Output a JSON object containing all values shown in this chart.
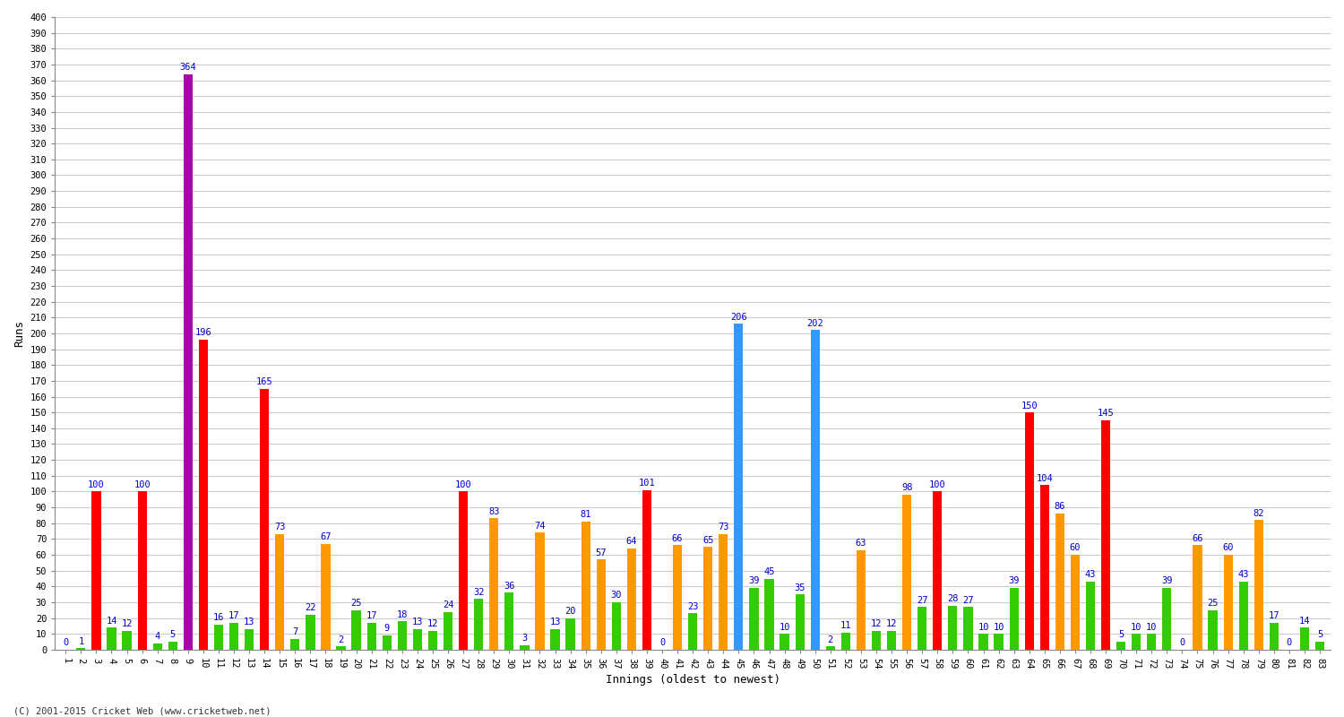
{
  "title": "",
  "xlabel": "Innings (oldest to newest)",
  "ylabel": "Runs",
  "background_color": "#ffffff",
  "grid_color": "#cccccc",
  "innings": [
    {
      "x": 1,
      "score": 0,
      "color": "#33cc00"
    },
    {
      "x": 2,
      "score": 1,
      "color": "#33cc00"
    },
    {
      "x": 3,
      "score": 100,
      "color": "#ff0000"
    },
    {
      "x": 4,
      "score": 14,
      "color": "#33cc00"
    },
    {
      "x": 5,
      "score": 12,
      "color": "#33cc00"
    },
    {
      "x": 6,
      "score": 100,
      "color": "#ff0000"
    },
    {
      "x": 7,
      "score": 4,
      "color": "#33cc00"
    },
    {
      "x": 8,
      "score": 5,
      "color": "#33cc00"
    },
    {
      "x": 9,
      "score": 364,
      "color": "#aa00aa"
    },
    {
      "x": 10,
      "score": 196,
      "color": "#ff0000"
    },
    {
      "x": 11,
      "score": 16,
      "color": "#33cc00"
    },
    {
      "x": 12,
      "score": 17,
      "color": "#33cc00"
    },
    {
      "x": 13,
      "score": 13,
      "color": "#33cc00"
    },
    {
      "x": 14,
      "score": 165,
      "color": "#ff0000"
    },
    {
      "x": 15,
      "score": 73,
      "color": "#ff9900"
    },
    {
      "x": 16,
      "score": 7,
      "color": "#33cc00"
    },
    {
      "x": 17,
      "score": 22,
      "color": "#33cc00"
    },
    {
      "x": 18,
      "score": 67,
      "color": "#ff9900"
    },
    {
      "x": 19,
      "score": 2,
      "color": "#33cc00"
    },
    {
      "x": 20,
      "score": 25,
      "color": "#33cc00"
    },
    {
      "x": 21,
      "score": 17,
      "color": "#33cc00"
    },
    {
      "x": 22,
      "score": 9,
      "color": "#33cc00"
    },
    {
      "x": 23,
      "score": 18,
      "color": "#33cc00"
    },
    {
      "x": 24,
      "score": 13,
      "color": "#33cc00"
    },
    {
      "x": 25,
      "score": 12,
      "color": "#33cc00"
    },
    {
      "x": 26,
      "score": 24,
      "color": "#33cc00"
    },
    {
      "x": 27,
      "score": 100,
      "color": "#ff0000"
    },
    {
      "x": 28,
      "score": 32,
      "color": "#33cc00"
    },
    {
      "x": 29,
      "score": 83,
      "color": "#ff9900"
    },
    {
      "x": 30,
      "score": 36,
      "color": "#33cc00"
    },
    {
      "x": 31,
      "score": 3,
      "color": "#33cc00"
    },
    {
      "x": 32,
      "score": 74,
      "color": "#ff9900"
    },
    {
      "x": 33,
      "score": 13,
      "color": "#33cc00"
    },
    {
      "x": 34,
      "score": 20,
      "color": "#33cc00"
    },
    {
      "x": 35,
      "score": 81,
      "color": "#ff9900"
    },
    {
      "x": 36,
      "score": 57,
      "color": "#ff9900"
    },
    {
      "x": 37,
      "score": 30,
      "color": "#33cc00"
    },
    {
      "x": 38,
      "score": 64,
      "color": "#ff9900"
    },
    {
      "x": 39,
      "score": 101,
      "color": "#ff0000"
    },
    {
      "x": 40,
      "score": 0,
      "color": "#33cc00"
    },
    {
      "x": 41,
      "score": 66,
      "color": "#ff9900"
    },
    {
      "x": 42,
      "score": 23,
      "color": "#33cc00"
    },
    {
      "x": 43,
      "score": 65,
      "color": "#ff9900"
    },
    {
      "x": 44,
      "score": 73,
      "color": "#ff9900"
    },
    {
      "x": 45,
      "score": 206,
      "color": "#3399ff"
    },
    {
      "x": 46,
      "score": 39,
      "color": "#33cc00"
    },
    {
      "x": 47,
      "score": 45,
      "color": "#33cc00"
    },
    {
      "x": 48,
      "score": 10,
      "color": "#33cc00"
    },
    {
      "x": 49,
      "score": 35,
      "color": "#33cc00"
    },
    {
      "x": 50,
      "score": 202,
      "color": "#3399ff"
    },
    {
      "x": 51,
      "score": 2,
      "color": "#33cc00"
    },
    {
      "x": 52,
      "score": 11,
      "color": "#33cc00"
    },
    {
      "x": 53,
      "score": 63,
      "color": "#ff9900"
    },
    {
      "x": 54,
      "score": 12,
      "color": "#33cc00"
    },
    {
      "x": 55,
      "score": 12,
      "color": "#33cc00"
    },
    {
      "x": 56,
      "score": 98,
      "color": "#ff9900"
    },
    {
      "x": 57,
      "score": 27,
      "color": "#33cc00"
    },
    {
      "x": 58,
      "score": 100,
      "color": "#ff0000"
    },
    {
      "x": 59,
      "score": 28,
      "color": "#33cc00"
    },
    {
      "x": 60,
      "score": 27,
      "color": "#33cc00"
    },
    {
      "x": 61,
      "score": 10,
      "color": "#33cc00"
    },
    {
      "x": 62,
      "score": 10,
      "color": "#33cc00"
    },
    {
      "x": 63,
      "score": 39,
      "color": "#33cc00"
    },
    {
      "x": 64,
      "score": 150,
      "color": "#ff0000"
    },
    {
      "x": 65,
      "score": 104,
      "color": "#ff0000"
    },
    {
      "x": 66,
      "score": 86,
      "color": "#ff9900"
    },
    {
      "x": 67,
      "score": 60,
      "color": "#ff9900"
    },
    {
      "x": 68,
      "score": 43,
      "color": "#33cc00"
    },
    {
      "x": 69,
      "score": 145,
      "color": "#ff0000"
    },
    {
      "x": 70,
      "score": 5,
      "color": "#33cc00"
    },
    {
      "x": 71,
      "score": 10,
      "color": "#33cc00"
    },
    {
      "x": 72,
      "score": 10,
      "color": "#33cc00"
    },
    {
      "x": 73,
      "score": 39,
      "color": "#33cc00"
    },
    {
      "x": 74,
      "score": 0,
      "color": "#33cc00"
    },
    {
      "x": 75,
      "score": 66,
      "color": "#ff9900"
    },
    {
      "x": 76,
      "score": 25,
      "color": "#33cc00"
    },
    {
      "x": 77,
      "score": 60,
      "color": "#ff9900"
    },
    {
      "x": 78,
      "score": 43,
      "color": "#33cc00"
    },
    {
      "x": 79,
      "score": 82,
      "color": "#ff9900"
    },
    {
      "x": 80,
      "score": 17,
      "color": "#33cc00"
    },
    {
      "x": 81,
      "score": 0,
      "color": "#33cc00"
    },
    {
      "x": 82,
      "score": 14,
      "color": "#33cc00"
    },
    {
      "x": 83,
      "score": 5,
      "color": "#33cc00"
    }
  ],
  "ylim": [
    0,
    400
  ],
  "yticks": [
    0,
    10,
    20,
    30,
    40,
    50,
    60,
    70,
    80,
    90,
    100,
    110,
    120,
    130,
    140,
    150,
    160,
    170,
    180,
    190,
    200,
    210,
    220,
    230,
    240,
    250,
    260,
    270,
    280,
    290,
    300,
    310,
    320,
    330,
    340,
    350,
    360,
    370,
    380,
    390,
    400
  ],
  "label_color": "#0000cc",
  "label_fontsize": 7.5,
  "tick_fontsize": 7.5,
  "bar_width": 0.6,
  "footer": "(C) 2001-2015 Cricket Web (www.cricketweb.net)"
}
